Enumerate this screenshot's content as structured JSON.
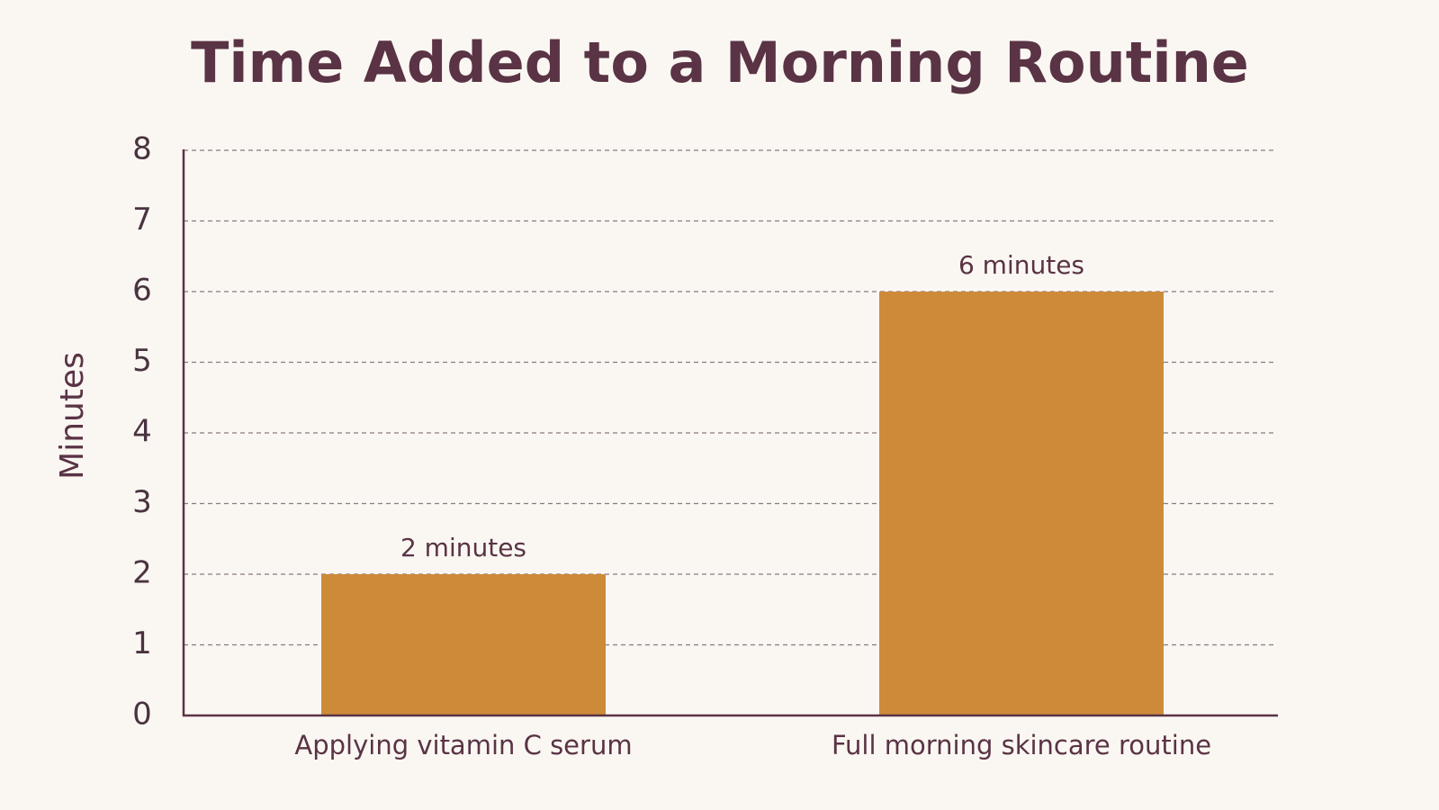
{
  "chart_data": {
    "type": "bar",
    "title": "Time Added to a Morning Routine",
    "y_label": "Minutes",
    "categories": [
      "Applying vitamin C serum",
      "Full morning skincare routine"
    ],
    "values": [
      2,
      6
    ],
    "value_labels": [
      "2 minutes",
      "6 minutes"
    ],
    "color": "#cd8b3a",
    "ylim": [
      0,
      8
    ],
    "yticks": [
      0,
      1,
      2,
      3,
      4,
      5,
      6,
      7,
      8
    ],
    "grid": true
  }
}
